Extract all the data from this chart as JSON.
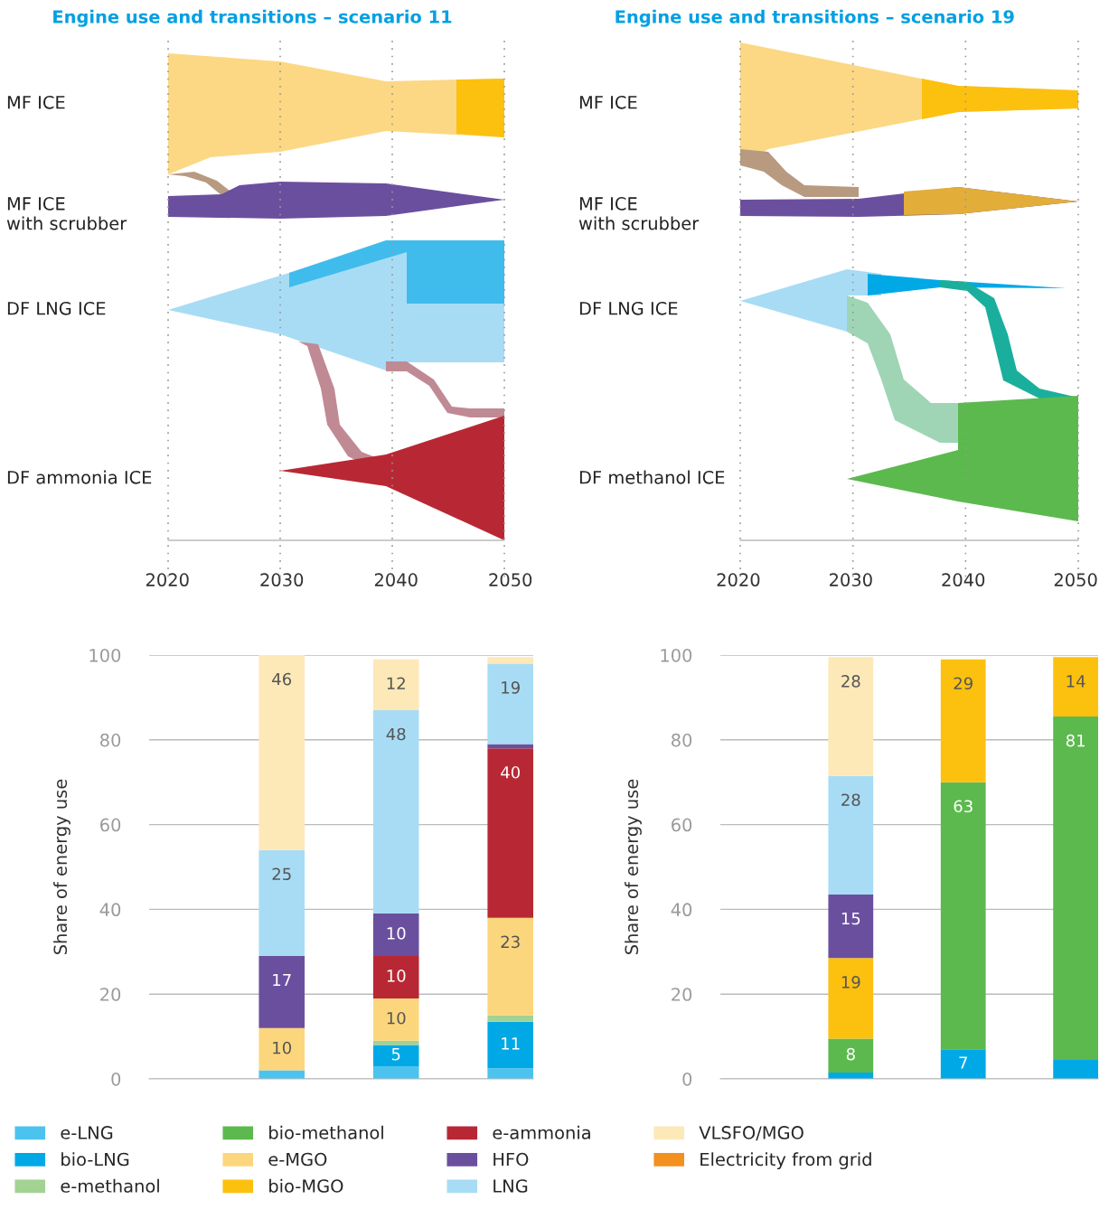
{
  "chart_data": [
    {
      "type": "other",
      "title": "Engine use and transitions – scenario 11",
      "annotations": [
        "MF ICE",
        "MF ICE\nwith scrubber",
        "DF LNG ICE",
        "DF ammonia ICE"
      ]
    },
    {
      "type": "other",
      "title": "Engine use and transitions – scenario 19",
      "annotations": [
        "MF ICE",
        "MF ICE\nwith scrubber",
        "DF LNG ICE",
        "DF methanol ICE"
      ]
    },
    {
      "type": "bar",
      "stacked": true,
      "categories": [
        "2020",
        "2030",
        "2040",
        "2050"
      ],
      "ylabel": "Share of energy use",
      "ylim": [
        0,
        100
      ],
      "yticks": [
        0,
        20,
        40,
        60,
        80,
        100
      ],
      "grid": "y",
      "legend": "bottom",
      "series": [
        {
          "name": "e-LNG",
          "color": "#4cc3ef",
          "values": [
            null,
            2,
            3,
            2.5
          ],
          "value_labels": [
            null,
            null,
            null,
            null
          ]
        },
        {
          "name": "bio-LNG",
          "color": "#00a9e6",
          "values": [
            null,
            0,
            5,
            11
          ],
          "value_labels": [
            null,
            null,
            "5",
            "11"
          ]
        },
        {
          "name": "e-methanol",
          "color": "#a3d293",
          "values": [
            null,
            0,
            1,
            1.5
          ],
          "value_labels": [
            null,
            null,
            null,
            null
          ]
        },
        {
          "name": "bio-methanol",
          "color": "#5cb94e",
          "values": [
            null,
            0,
            0,
            0
          ],
          "value_labels": [
            null,
            null,
            null,
            null
          ]
        },
        {
          "name": "e-MGO",
          "color": "#fbd67d",
          "values": [
            null,
            10,
            10,
            23
          ],
          "value_labels": [
            null,
            "10",
            "10",
            "23"
          ]
        },
        {
          "name": "bio-MGO",
          "color": "#fcc00f",
          "values": [
            null,
            0,
            0,
            0
          ],
          "value_labels": [
            null,
            null,
            null,
            null
          ]
        },
        {
          "name": "e-ammonia",
          "color": "#b82834",
          "values": [
            null,
            0,
            10,
            40
          ],
          "value_labels": [
            null,
            null,
            "10",
            "40"
          ]
        },
        {
          "name": "HFO",
          "color": "#6b4f9f",
          "values": [
            null,
            17,
            10,
            1
          ],
          "value_labels": [
            null,
            "17",
            "10",
            null
          ]
        },
        {
          "name": "LNG",
          "color": "#a8dcf5",
          "values": [
            null,
            25,
            48,
            19
          ],
          "value_labels": [
            null,
            "25",
            "48",
            "19"
          ]
        },
        {
          "name": "VLSFO/MGO",
          "color": "#fde8b8",
          "values": [
            null,
            46,
            12,
            1.5
          ],
          "value_labels": [
            null,
            "46",
            "12",
            null
          ]
        },
        {
          "name": "Electricity from grid",
          "color": "#f39020",
          "values": [
            null,
            0,
            0,
            0
          ],
          "value_labels": [
            null,
            null,
            null,
            null
          ]
        }
      ]
    },
    {
      "type": "bar",
      "stacked": true,
      "categories": [
        "2020",
        "2030",
        "2040",
        "2050"
      ],
      "ylabel": "Share of energy use",
      "ylim": [
        0,
        100
      ],
      "yticks": [
        0,
        20,
        40,
        60,
        80,
        100
      ],
      "grid": "y",
      "series": [
        {
          "color": "#00a9e6",
          "values": [
            null,
            1.5,
            7,
            4.5
          ],
          "value_labels": [
            null,
            null,
            "7",
            null
          ]
        },
        {
          "color": "#5cb94e",
          "values": [
            null,
            8,
            63,
            81
          ],
          "value_labels": [
            null,
            "8",
            "63",
            "81"
          ]
        },
        {
          "color": "#fcc00f",
          "values": [
            null,
            19,
            29,
            14
          ],
          "value_labels": [
            null,
            "19",
            "29",
            "14"
          ]
        },
        {
          "color": "#6b4f9f",
          "values": [
            null,
            15,
            0,
            0
          ],
          "value_labels": [
            null,
            "15",
            null,
            null
          ]
        },
        {
          "color": "#a8dcf5",
          "values": [
            null,
            28,
            0,
            0
          ],
          "value_labels": [
            null,
            "28",
            null,
            null
          ]
        },
        {
          "color": "#fde8b8",
          "values": [
            null,
            28,
            0,
            0
          ],
          "value_labels": [
            null,
            "28",
            null,
            null
          ]
        }
      ]
    }
  ]
}
